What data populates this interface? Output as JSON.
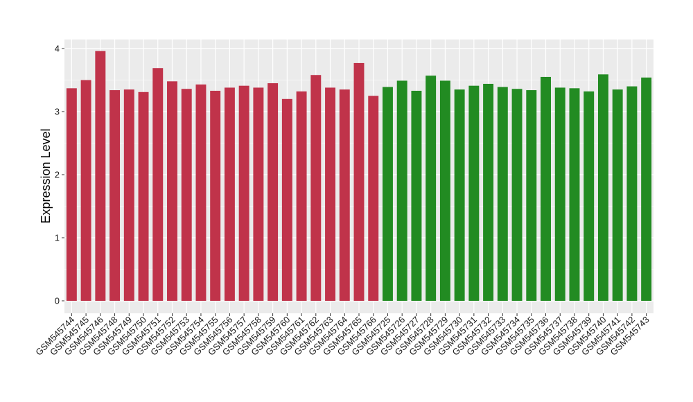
{
  "chart_data": {
    "type": "bar",
    "title": "",
    "xlabel": "",
    "ylabel": "Expression Level",
    "ylim": [
      0,
      4.0
    ],
    "y_ticks": [
      0,
      1,
      2,
      3,
      4
    ],
    "grid": true,
    "legend": "none",
    "colors": {
      "group_red": "#c0334a",
      "group_green": "#228b22",
      "panel_bg": "#ebebeb",
      "grid": "#ffffff"
    },
    "categories": [
      "GSM545744",
      "GSM545745",
      "GSM545746",
      "GSM545748",
      "GSM545749",
      "GSM545750",
      "GSM545751",
      "GSM545752",
      "GSM545753",
      "GSM545754",
      "GSM545755",
      "GSM545756",
      "GSM545757",
      "GSM545758",
      "GSM545759",
      "GSM545760",
      "GSM545761",
      "GSM545762",
      "GSM545763",
      "GSM545764",
      "GSM545765",
      "GSM545766",
      "GSM545725",
      "GSM545726",
      "GSM545727",
      "GSM545728",
      "GSM545729",
      "GSM545730",
      "GSM545731",
      "GSM545732",
      "GSM545733",
      "GSM545734",
      "GSM545735",
      "GSM545736",
      "GSM545737",
      "GSM545738",
      "GSM545739",
      "GSM545740",
      "GSM545741",
      "GSM545742",
      "GSM545743"
    ],
    "values": [
      3.37,
      3.5,
      3.96,
      3.34,
      3.35,
      3.31,
      3.69,
      3.48,
      3.36,
      3.43,
      3.33,
      3.38,
      3.41,
      3.38,
      3.45,
      3.2,
      3.32,
      3.58,
      3.38,
      3.35,
      3.77,
      3.25,
      3.39,
      3.49,
      3.33,
      3.57,
      3.49,
      3.35,
      3.41,
      3.44,
      3.39,
      3.36,
      3.34,
      3.55,
      3.38,
      3.37,
      3.32,
      3.59,
      3.35,
      3.4,
      3.54
    ],
    "groups": [
      "red",
      "red",
      "red",
      "red",
      "red",
      "red",
      "red",
      "red",
      "red",
      "red",
      "red",
      "red",
      "red",
      "red",
      "red",
      "red",
      "red",
      "red",
      "red",
      "red",
      "red",
      "red",
      "green",
      "green",
      "green",
      "green",
      "green",
      "green",
      "green",
      "green",
      "green",
      "green",
      "green",
      "green",
      "green",
      "green",
      "green",
      "green",
      "green",
      "green",
      "green"
    ]
  }
}
